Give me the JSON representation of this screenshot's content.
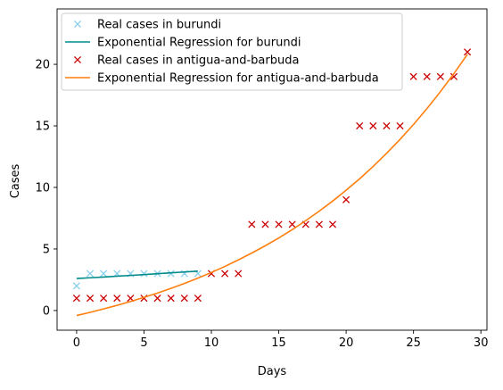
{
  "chart_data": {
    "type": "scatter",
    "title": "",
    "xlabel": "Days",
    "ylabel": "Cases",
    "xlim": [
      -1.45,
      30.45
    ],
    "ylim": [
      -1.6,
      24.5
    ],
    "xticks": [
      0,
      5,
      10,
      15,
      20,
      25,
      30
    ],
    "yticks": [
      0,
      5,
      10,
      15,
      20
    ],
    "grid": false,
    "legend_position": "top-left",
    "series": [
      {
        "name": "Real cases in burundi",
        "kind": "scatter",
        "marker": "x",
        "color": "#87ceeb",
        "x": [
          0,
          1,
          2,
          3,
          4,
          5,
          6,
          7,
          8,
          9
        ],
        "y": [
          2,
          3,
          3,
          3,
          3,
          3,
          3,
          3,
          3,
          3
        ]
      },
      {
        "name": "Exponential Regression for burundi",
        "kind": "line",
        "color": "#008b8b",
        "x": [
          0,
          1,
          2,
          3,
          4,
          5,
          6,
          7,
          8,
          9
        ],
        "y": [
          2.6,
          2.66,
          2.72,
          2.79,
          2.85,
          2.92,
          2.99,
          3.06,
          3.13,
          3.2
        ]
      },
      {
        "name": "Real cases in antigua-and-barbuda",
        "kind": "scatter",
        "marker": "x",
        "color": "#cc0000",
        "x": [
          0,
          1,
          2,
          3,
          4,
          5,
          6,
          7,
          8,
          9,
          10,
          11,
          12,
          13,
          14,
          15,
          16,
          17,
          18,
          19,
          20,
          21,
          22,
          23,
          24,
          25,
          26,
          27,
          28,
          29
        ],
        "y": [
          1,
          1,
          1,
          1,
          1,
          1,
          1,
          1,
          1,
          1,
          3,
          3,
          3,
          7,
          7,
          7,
          7,
          7,
          7,
          7,
          9,
          15,
          15,
          15,
          15,
          19,
          19,
          19,
          19,
          21
        ]
      },
      {
        "name": "Exponential Regression for antigua-and-barbuda",
        "kind": "line",
        "color": "#ff7f0e",
        "x": [
          0,
          1,
          2,
          3,
          4,
          5,
          6,
          7,
          8,
          9,
          10,
          11,
          12,
          13,
          14,
          15,
          16,
          17,
          18,
          19,
          20,
          21,
          22,
          23,
          24,
          25,
          26,
          27,
          28,
          29
        ],
        "y": [
          -0.41,
          -0.15,
          0.13,
          0.42,
          0.73,
          1.07,
          1.42,
          1.8,
          2.2,
          2.63,
          3.09,
          3.58,
          4.11,
          4.67,
          5.26,
          5.89,
          6.57,
          7.3,
          8.07,
          8.89,
          9.77,
          10.7,
          11.7,
          12.77,
          13.9,
          15.11,
          16.41,
          17.78,
          19.25,
          20.81
        ]
      }
    ]
  }
}
